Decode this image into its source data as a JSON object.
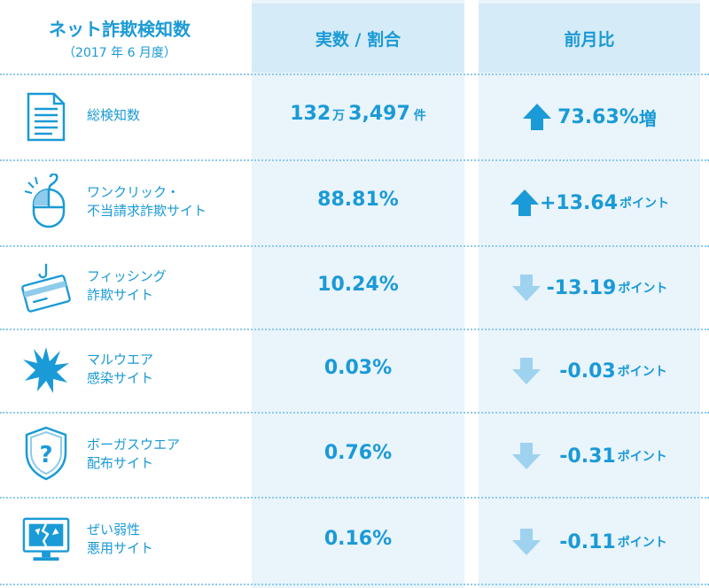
{
  "title": {
    "main": "ネット詐欺検知数",
    "sub": "（2017 年 6 月度）"
  },
  "columns": {
    "actual": "実数 / 割合",
    "mom": "前月比"
  },
  "colors": {
    "accent": "#1a9ad6",
    "arrow_up": "#1a9ad6",
    "arrow_down": "#9fd2ee",
    "header_bg": "#d6ebf8",
    "column_bg": "#e9f4fb"
  },
  "rows": [
    {
      "icon": "document-icon",
      "label_l1": "総検知数",
      "label_l2": "",
      "value_main": "132",
      "value_man": "万",
      "value_rest": "3,497",
      "value_ken": "件",
      "direction": "up",
      "change": "73.63%",
      "change_unit": "増"
    },
    {
      "icon": "mouse-click-icon",
      "label_l1": "ワンクリック・",
      "label_l2": "不当請求詐欺サイト",
      "value": "88.81%",
      "direction": "up",
      "change": "+13.64",
      "change_unit": "ポイント"
    },
    {
      "icon": "credit-card-hook-icon",
      "label_l1": "フィッシング",
      "label_l2": "詐欺サイト",
      "value": "10.24%",
      "direction": "down",
      "change": "-13.19",
      "change_unit": "ポイント"
    },
    {
      "icon": "malware-burst-icon",
      "label_l1": "マルウエア",
      "label_l2": "感染サイト",
      "value": "0.03%",
      "direction": "down",
      "change": "-0.03",
      "change_unit": "ポイント"
    },
    {
      "icon": "shield-question-icon",
      "label_l1": "ボーガスウエア",
      "label_l2": "配布サイト",
      "value": "0.76%",
      "direction": "down",
      "change": "-0.31",
      "change_unit": "ポイント"
    },
    {
      "icon": "broken-monitor-icon",
      "label_l1": "ぜい弱性",
      "label_l2": "悪用サイト",
      "value": "0.16%",
      "direction": "down",
      "change": "-0.11",
      "change_unit": "ポイント"
    }
  ]
}
